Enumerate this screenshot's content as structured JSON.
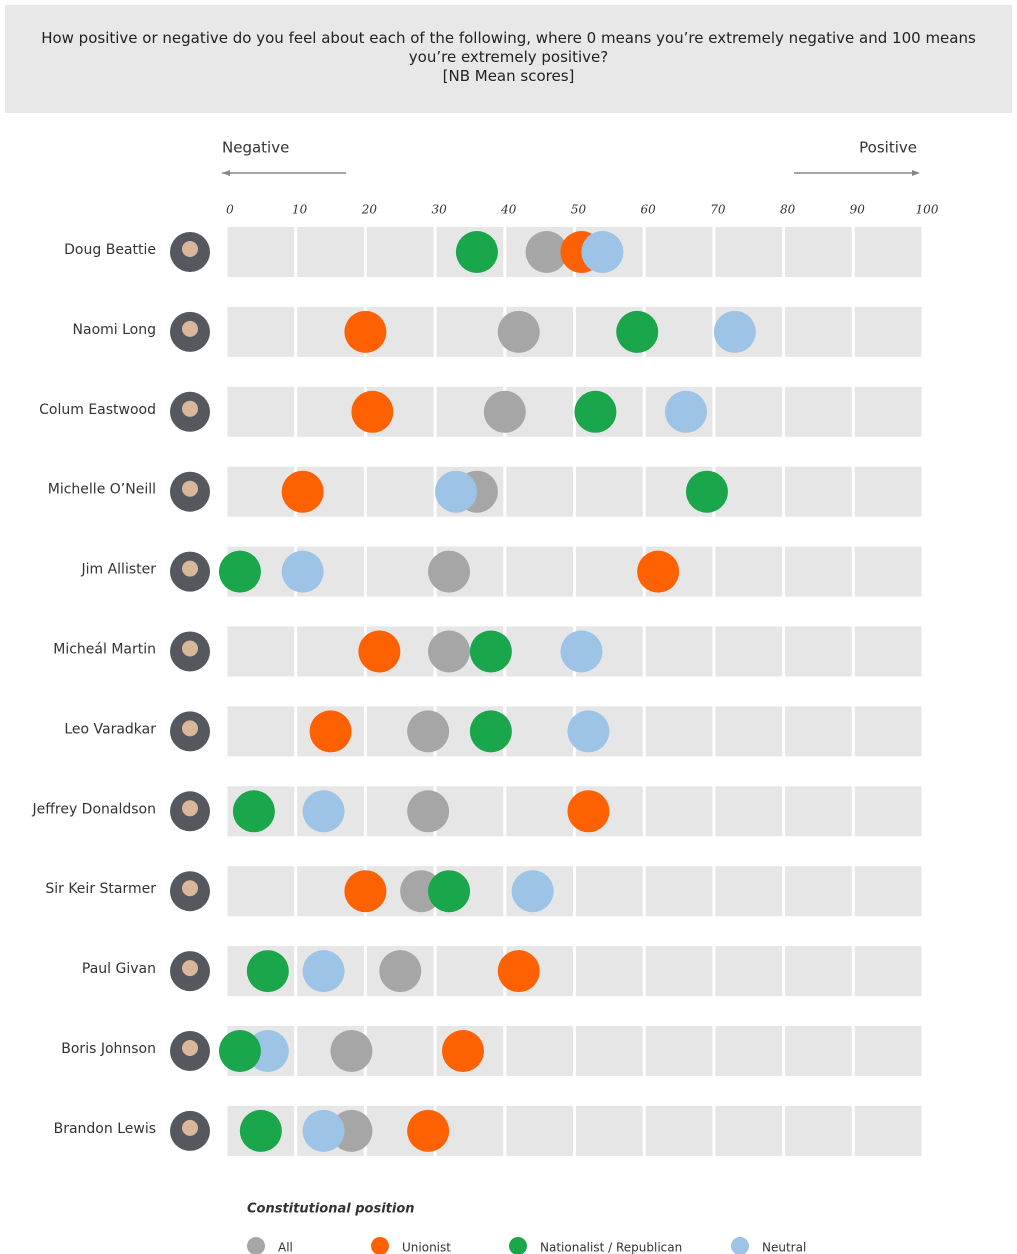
{
  "chart_data": {
    "type": "dot",
    "title": "How positive or negative do you feel about each of the following, where 0 means you’re extremely negative and 100 means you’re extremely positive?",
    "subtitle": "[NB Mean scores]",
    "annotations": {
      "left": "Negative",
      "right": "Positive"
    },
    "categories": [
      "Doug Beattie",
      "Naomi Long",
      "Colum Eastwood",
      "Michelle O’Neill",
      "Jim Allister",
      "Micheál Martin",
      "Leo Varadkar",
      "Jeffrey Donaldson",
      "Sir Keir Starmer",
      "Paul Givan",
      "Boris Johnson",
      "Brandon Lewis"
    ],
    "xlim": [
      0,
      100
    ],
    "xticks": [
      0,
      10,
      20,
      30,
      40,
      50,
      60,
      70,
      80,
      90,
      100
    ],
    "legend_title": "Constitutional position",
    "series": [
      {
        "name": "All",
        "color": "#a6a6a6",
        "values": [
          46,
          42,
          40,
          36,
          32,
          32,
          29,
          29,
          28,
          25,
          18,
          18
        ]
      },
      {
        "name": "Unionist",
        "color": "#fe6101",
        "values": [
          51,
          20,
          21,
          11,
          62,
          22,
          15,
          52,
          20,
          42,
          34,
          29
        ]
      },
      {
        "name": "Neutral",
        "color": "#9dc3e6",
        "values": [
          54,
          73,
          66,
          33,
          11,
          51,
          52,
          14,
          44,
          14,
          6,
          14
        ]
      },
      {
        "name": "Nationalist / Republican",
        "color": "#1aa64a",
        "values": [
          36,
          59,
          53,
          69,
          2,
          38,
          38,
          4,
          32,
          6,
          2,
          5
        ]
      }
    ]
  }
}
